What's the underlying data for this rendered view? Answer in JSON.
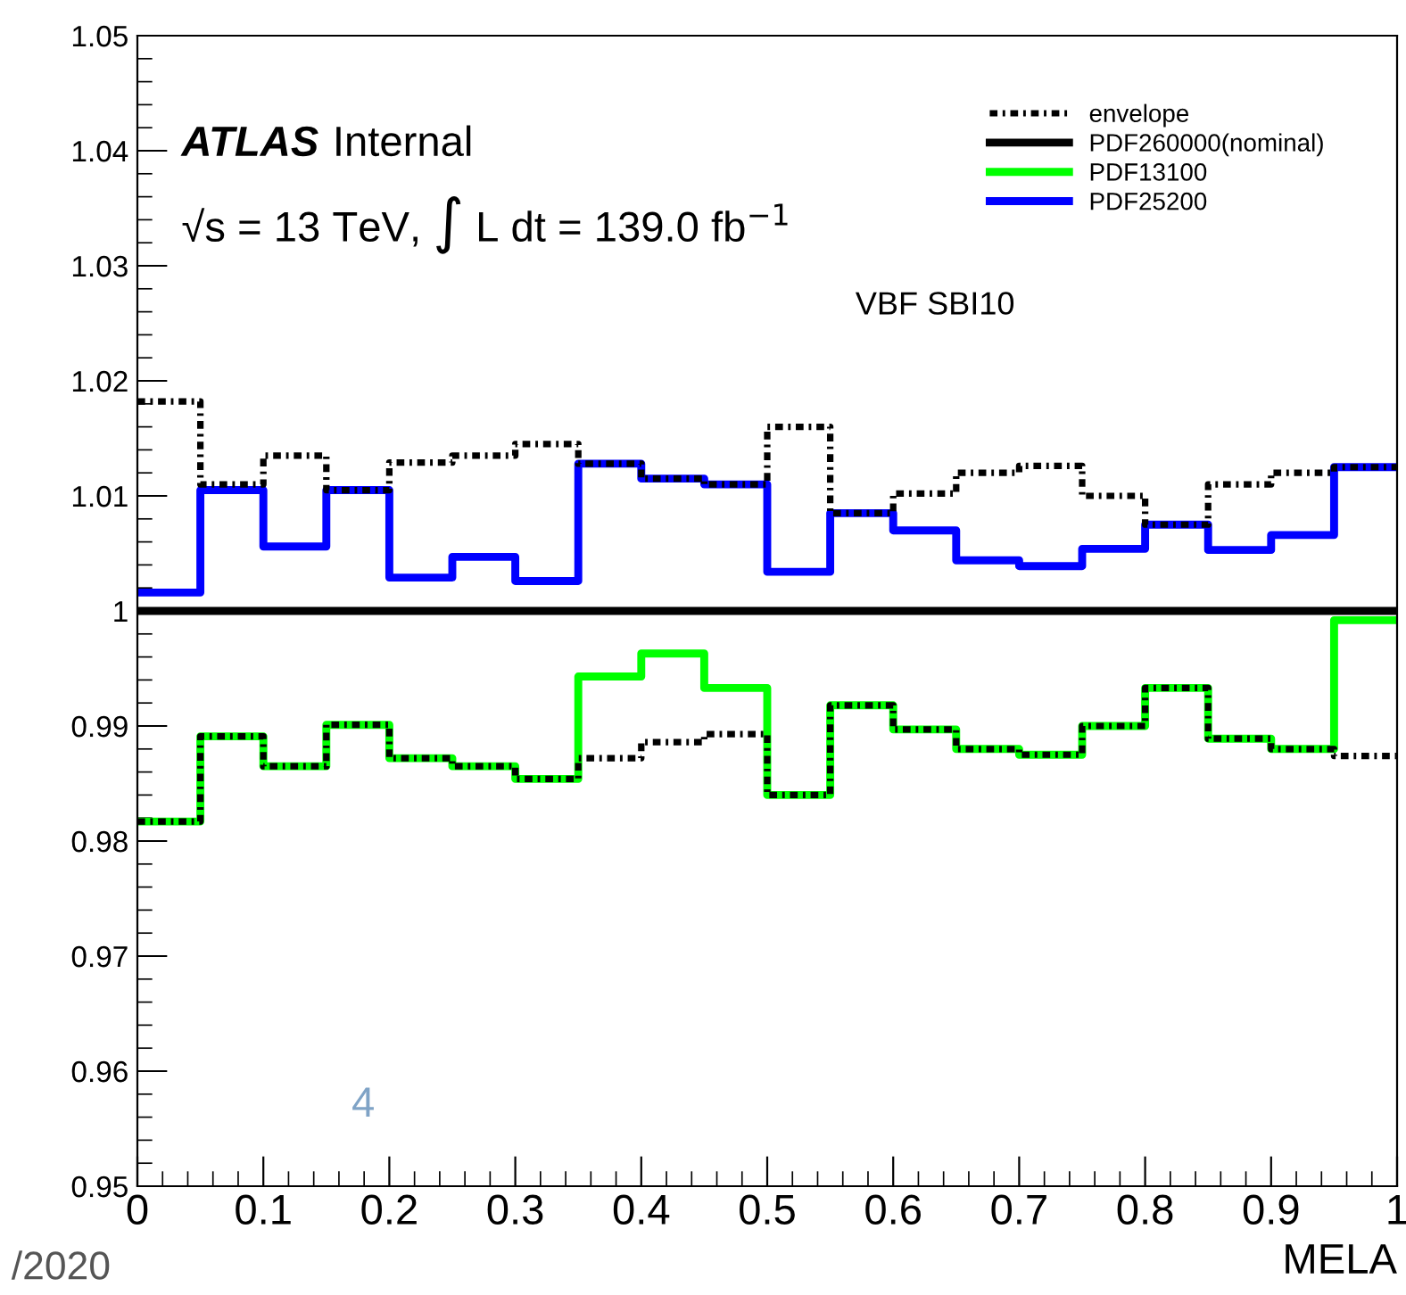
{
  "chart_data": {
    "type": "step",
    "xlabel": "MELA",
    "x": [
      0,
      0.05,
      0.1,
      0.15,
      0.2,
      0.25,
      0.3,
      0.35,
      0.4,
      0.45,
      0.5,
      0.55,
      0.6,
      0.65,
      0.7,
      0.75,
      0.8,
      0.85,
      0.9,
      0.95,
      1
    ],
    "series": [
      {
        "name": "envelope",
        "color": "#000000",
        "line_style": "dashdot",
        "values": [
          1.0182,
          1.011,
          1.0135,
          1.0105,
          1.0129,
          1.0135,
          1.0145,
          1.0128,
          1.0115,
          1.011,
          1.016,
          1.0085,
          1.0102,
          1.012,
          1.0126,
          1.01,
          1.0075,
          1.011,
          1.012,
          1.0125,
          1.0125
        ]
      },
      {
        "name": "PDF260000(nominal)",
        "color": "#000000",
        "line_style": "solid",
        "values": [
          1,
          1,
          1,
          1,
          1,
          1,
          1,
          1,
          1,
          1,
          1,
          1,
          1,
          1,
          1,
          1,
          1,
          1,
          1,
          1,
          1
        ]
      },
      {
        "name": "PDF13100",
        "color": "#00ff00",
        "line_style": "solid",
        "values": [
          0.9817,
          0.9891,
          0.9865,
          0.9901,
          0.9872,
          0.9865,
          0.9854,
          0.9943,
          0.9963,
          0.9933,
          0.984,
          0.9918,
          0.9897,
          0.988,
          0.9875,
          0.99,
          0.9933,
          0.9889,
          0.988,
          0.9992,
          0.9992
        ]
      },
      {
        "name": "PDF25200",
        "color": "#0000ff",
        "line_style": "solid",
        "values": [
          1.0016,
          1.0105,
          1.0056,
          1.0105,
          1.0029,
          1.0047,
          1.0026,
          1.0128,
          1.0115,
          1.011,
          1.0034,
          1.0085,
          1.007,
          1.0044,
          1.0039,
          1.0054,
          1.0075,
          1.0053,
          1.0066,
          1.0125,
          1.0125
        ]
      },
      {
        "color": "#000000",
        "line_style": "dashdot",
        "values": [
          0.9817,
          0.9891,
          0.9865,
          0.9901,
          0.9872,
          0.9865,
          0.9854,
          0.9872,
          0.9886,
          0.9893,
          0.984,
          0.9918,
          0.9897,
          0.988,
          0.9875,
          0.99,
          0.9933,
          0.9889,
          0.988,
          0.9874,
          0.9874
        ]
      }
    ],
    "xlim": [
      0,
      1
    ],
    "ylim": [
      0.95,
      1.05
    ],
    "xticks": [
      0,
      0.1,
      0.2,
      0.3,
      0.4,
      0.5,
      0.6,
      0.7,
      0.8,
      0.9,
      1
    ],
    "yticks": [
      0.95,
      0.96,
      0.97,
      0.98,
      0.99,
      1,
      1.01,
      1.02,
      1.03,
      1.04,
      1.05
    ],
    "legend": "top right",
    "grid": false,
    "annotations": [
      "ATLAS",
      "Internal",
      "√s = 13 TeV, ∫ L dt = 139.0 fb$^{−1}$",
      "VBF SBI10",
      "4",
      "/2020"
    ]
  }
}
